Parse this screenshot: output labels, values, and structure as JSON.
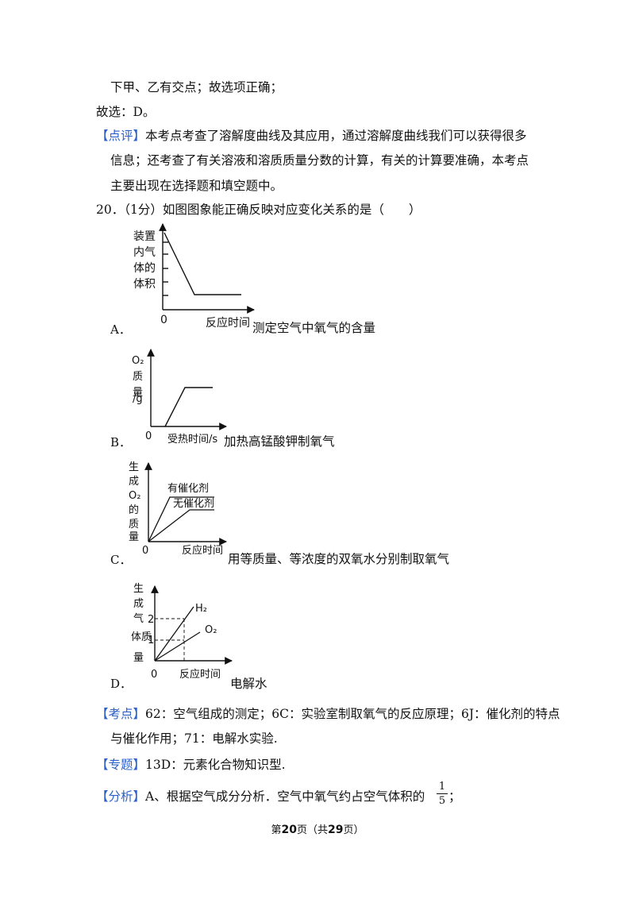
{
  "text": {
    "line1": "下甲、乙有交点；故选项正确；",
    "line2": "故选：D。",
    "comment_tag": "【点评】",
    "comment_1": "本考点考查了溶解度曲线及其应用，通过溶解度曲线我们可以获得很多",
    "comment_2": "信息；还考查了有关溶液和溶质质量分数的计算，有关的计算要准确，本考点",
    "comment_3": "主要出现在选择题和填空题中。",
    "question": "20．（1分）如图图象能正确反映对应变化关系的是（　　）"
  },
  "options": {
    "a": {
      "label": "A．",
      "desc": "测定空气中氧气的含量"
    },
    "b": {
      "label": "B．",
      "desc": "加热高锰酸钾制氧气"
    },
    "c": {
      "label": "C．",
      "desc": "用等质量、等浓度的双氧水分别制取氧气"
    },
    "d": {
      "label": "D．",
      "desc": "电解水"
    }
  },
  "graphs": {
    "a": {
      "ylabel": [
        "装置",
        "内气",
        "体的",
        "体积"
      ],
      "origin": "0",
      "xlabel": "反应时间"
    },
    "b": {
      "ylabel": [
        "O₂",
        "质",
        "量",
        "/g"
      ],
      "origin": "0",
      "xlabel": "受热时间/s"
    },
    "c": {
      "ylabel": [
        "生",
        "成",
        "O₂",
        "的",
        "质",
        "量"
      ],
      "origin": "0",
      "xlabel": "反应时间",
      "series": [
        "有催化剂",
        "无催化剂"
      ]
    },
    "d": {
      "ylabel": [
        "生",
        "成",
        "气",
        "体质",
        "量"
      ],
      "origin": "0",
      "xlabel": "反应时间",
      "ticks": [
        "2",
        "1"
      ],
      "series": [
        "H₂",
        "O₂"
      ]
    }
  },
  "analysis": {
    "kaodian_tag": "【考点】",
    "kaodian_1": "62：空气组成的测定；6C：实验室制取氧气的反应原理；6J：催化剂的特点",
    "kaodian_2": "与催化作用；71：电解水实验.",
    "zhuanti_tag": "【专题】",
    "zhuanti": "13D：元素化合物知识型.",
    "fenxi_tag": "【分析】",
    "fenxi": "A、根据空气成分分析．空气中氧气约占空气体积的",
    "frac_num": "1",
    "frac_den": "5",
    "fenxi_end": "；"
  },
  "footer": {
    "prefix": "第",
    "page": "20",
    "mid": "页（共",
    "total": "29",
    "suffix": "页）"
  }
}
